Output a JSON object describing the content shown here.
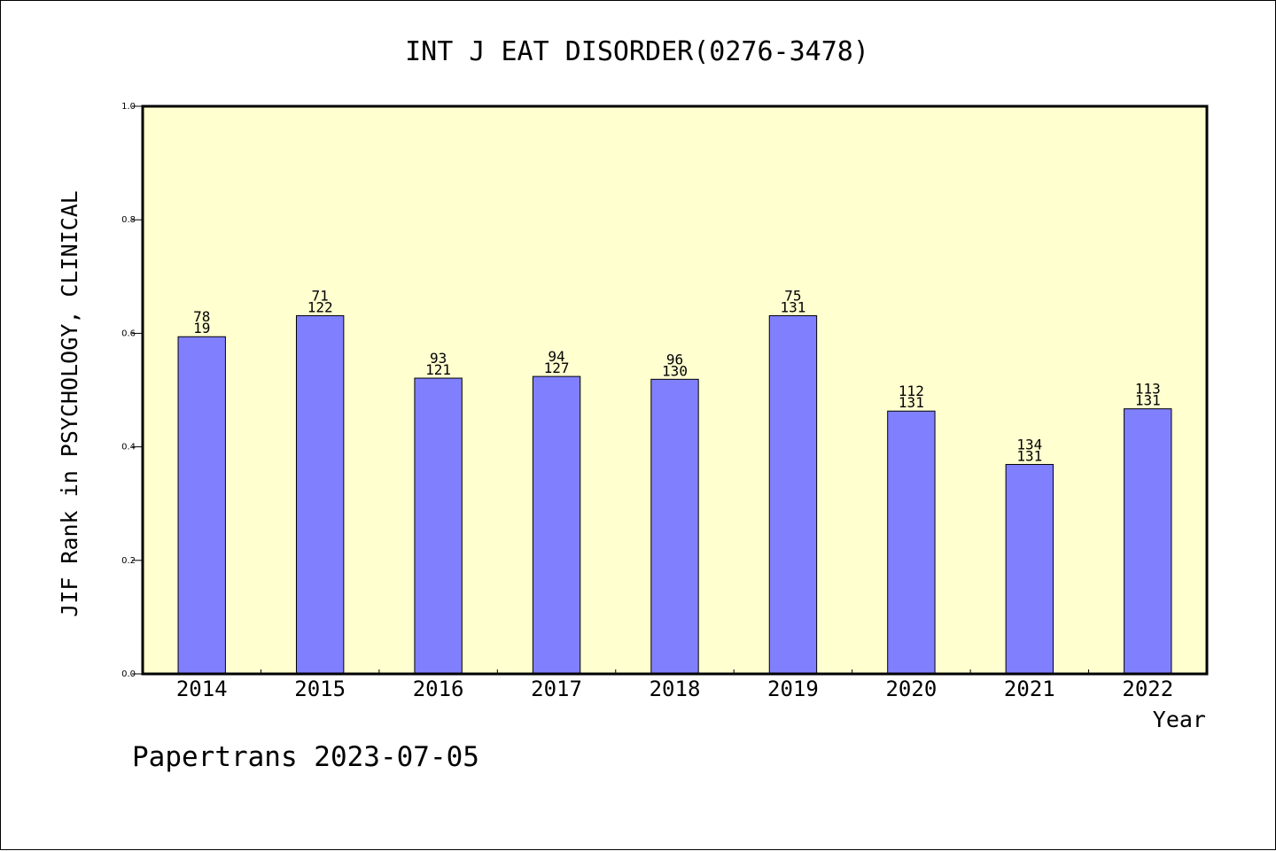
{
  "chart_data": {
    "type": "bar",
    "title": "INT J EAT DISORDER(0276-3478)",
    "xlabel": "Year",
    "ylabel": "JIF Rank in PSYCHOLOGY, CLINICAL",
    "ylim": [
      0,
      1.0
    ],
    "yticks": [
      "0.0",
      "0.2",
      "0.4",
      "0.6",
      "0.8",
      "1.0"
    ],
    "categories": [
      "2014",
      "2015",
      "2016",
      "2017",
      "2018",
      "2019",
      "2020",
      "2021",
      "2022"
    ],
    "values": [
      0.594,
      0.631,
      0.521,
      0.524,
      0.519,
      0.631,
      0.463,
      0.369,
      0.467
    ],
    "rank": [
      "78",
      "71",
      "93",
      "94",
      "96",
      "75",
      "112",
      "134",
      "113"
    ],
    "total": [
      "19",
      "122",
      "121",
      "127",
      "130",
      "131",
      "131",
      "131",
      "131"
    ],
    "grid": false,
    "plot_background": "#ffffd0",
    "bar_color": "#8080ff"
  },
  "footer": "Papertrans 2023-07-05"
}
